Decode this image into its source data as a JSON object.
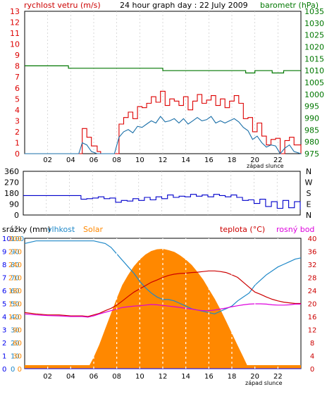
{
  "colors": {
    "wind": "#dd0000",
    "gust": "#1a6fa8",
    "baro": "#007700",
    "dir": "#0000cc",
    "rain": "#0000ee",
    "humidity": "#1e88c8",
    "solar": "#ff8800",
    "temp": "#cc0000",
    "dew": "#dd00dd",
    "frame": "#000000",
    "grid": "#ffffff",
    "panel_bg": "#ffffff"
  },
  "chart_data": [
    {
      "type": "line",
      "title": "24 hour graph day : 22 July 2009",
      "ylabel_left": "rychlost vetru (m/s)",
      "ylabel_right": "barometr (hPa)",
      "x_ticks": [
        "02",
        "04",
        "06",
        "08",
        "10",
        "12",
        "14",
        "16",
        "18",
        "20",
        "22"
      ],
      "x_note": "západ slunce",
      "ylim_left": [
        0,
        13
      ],
      "y_ticks_left": [
        "0",
        "1",
        "2",
        "3",
        "4",
        "5",
        "6",
        "7",
        "8",
        "9",
        "10",
        "11",
        "12",
        "13"
      ],
      "ylim_right": [
        975,
        1035
      ],
      "y_ticks_right": [
        "975",
        "980",
        "985",
        "990",
        "995",
        "1000",
        "1005",
        "1010",
        "1015",
        "1020",
        "1025",
        "1030",
        "1035"
      ],
      "grid": "white dashed vertical lines",
      "series": [
        {
          "name": "wind-gust",
          "style": "step",
          "x": [
            0,
            4.7,
            5.0,
            5.4,
            5.8,
            6.3,
            6.6,
            7.0,
            7.4,
            7.8,
            8.2,
            8.6,
            9.0,
            9.4,
            9.8,
            10.2,
            10.6,
            11.0,
            11.4,
            11.8,
            12.2,
            12.6,
            13.0,
            13.4,
            13.8,
            14.2,
            14.6,
            15.0,
            15.4,
            15.8,
            16.2,
            16.6,
            17.0,
            17.4,
            17.8,
            18.2,
            18.6,
            19.0,
            19.4,
            19.8,
            20.2,
            20.6,
            21.0,
            21.4,
            21.8,
            22.2,
            22.6,
            23.0,
            23.4,
            24
          ],
          "y": [
            0,
            0,
            2.3,
            1.5,
            0.7,
            0.2,
            0.0,
            0.0,
            0.0,
            0.0,
            2.7,
            3.3,
            3.8,
            3.2,
            4.3,
            4.2,
            4.6,
            5.2,
            4.7,
            5.7,
            4.4,
            5.0,
            4.8,
            4.4,
            5.2,
            4.0,
            4.8,
            5.4,
            4.6,
            4.9,
            5.3,
            4.4,
            5.0,
            4.2,
            4.8,
            5.3,
            4.6,
            3.2,
            3.3,
            2.0,
            2.8,
            1.6,
            0.8,
            1.3,
            1.4,
            0.0,
            1.2,
            1.5,
            0.8,
            0
          ]
        },
        {
          "name": "wind-speed",
          "style": "line",
          "x": [
            0,
            4.7,
            5.0,
            5.4,
            5.8,
            6.3,
            6.6,
            7.0,
            7.4,
            7.8,
            8.2,
            8.6,
            9.0,
            9.4,
            9.8,
            10.2,
            10.6,
            11.0,
            11.4,
            11.8,
            12.2,
            12.6,
            13.0,
            13.4,
            13.8,
            14.2,
            14.6,
            15.0,
            15.4,
            15.8,
            16.2,
            16.6,
            17.0,
            17.4,
            17.8,
            18.2,
            18.6,
            19.0,
            19.4,
            19.8,
            20.2,
            20.6,
            21.0,
            21.4,
            21.8,
            22.2,
            22.6,
            23.0,
            23.4,
            24
          ],
          "y": [
            0,
            0,
            1.0,
            0.8,
            0.2,
            0.0,
            0.0,
            0.0,
            0.0,
            0.0,
            1.5,
            2.0,
            2.2,
            1.9,
            2.5,
            2.4,
            2.7,
            3.0,
            2.8,
            3.4,
            2.9,
            3.0,
            3.2,
            2.8,
            3.2,
            2.7,
            3.0,
            3.3,
            3.0,
            3.1,
            3.4,
            2.8,
            3.0,
            2.8,
            3.0,
            3.2,
            2.9,
            2.4,
            2.1,
            1.3,
            1.6,
            1.0,
            0.6,
            0.8,
            0.7,
            0.0,
            0.5,
            0.8,
            0.2,
            0
          ]
        },
        {
          "name": "barometer",
          "style": "step",
          "axis": "right",
          "x": [
            0,
            3.8,
            8.0,
            12.0,
            15.3,
            16.0,
            17.5,
            19.2,
            20.0,
            21.5,
            22.5,
            24
          ],
          "y": [
            1012,
            1011,
            1011,
            1010,
            1010,
            1010,
            1010,
            1009,
            1010,
            1009,
            1010,
            1010
          ]
        }
      ]
    },
    {
      "type": "scatter",
      "ylabel_right": [
        "N",
        "W",
        "S",
        "E",
        "N"
      ],
      "ylim": [
        0,
        360
      ],
      "y_ticks": [
        "0",
        "90",
        "180",
        "270",
        "360"
      ],
      "series": [
        {
          "name": "wind-direction",
          "style": "step",
          "x": [
            0,
            4.6,
            5.0,
            5.5,
            6.0,
            6.5,
            7.0,
            7.5,
            8.0,
            8.5,
            9.0,
            9.5,
            10.0,
            10.5,
            11.0,
            11.5,
            12.0,
            12.5,
            13.0,
            13.5,
            14.0,
            14.5,
            15.0,
            15.5,
            16.0,
            16.5,
            17.0,
            17.5,
            18.0,
            18.5,
            19.0,
            19.5,
            20.0,
            20.5,
            21.0,
            21.5,
            22.0,
            22.5,
            23.0,
            23.5,
            24
          ],
          "y": [
            160,
            160,
            130,
            135,
            140,
            150,
            135,
            140,
            105,
            120,
            115,
            135,
            120,
            145,
            125,
            150,
            135,
            165,
            145,
            155,
            150,
            170,
            155,
            165,
            150,
            170,
            160,
            150,
            165,
            145,
            120,
            125,
            95,
            130,
            70,
            110,
            55,
            120,
            60,
            110,
            45
          ]
        }
      ]
    },
    {
      "type": "area",
      "ylabel_left_1": "srážky (mm)",
      "ylabel_left_2": "vlhkost",
      "ylabel_left_3": "Solar",
      "ylabel_right_1": "teplota (°C)",
      "ylabel_right_2": "rosný bod",
      "x_ticks": [
        "02",
        "04",
        "06",
        "08",
        "10",
        "12",
        "14",
        "16",
        "18",
        "20",
        "22"
      ],
      "x_note": "západ slunce",
      "y_ticks_rain": [
        "0",
        "1",
        "2",
        "3",
        "4",
        "5",
        "6",
        "7",
        "8",
        "9",
        "10"
      ],
      "y_ticks_humidity": [
        "0",
        "10",
        "20",
        "30",
        "40",
        "50",
        "60",
        "70",
        "80",
        "90",
        "100"
      ],
      "y_ticks_solar": [
        "0",
        "30",
        "60",
        "90",
        "120",
        "150",
        "180",
        "210",
        "240",
        "270",
        "300"
      ],
      "y_ticks_right": [
        "0",
        "4",
        "8",
        "12",
        "16",
        "20",
        "24",
        "28",
        "32",
        "36",
        "40"
      ],
      "series": [
        {
          "name": "solar",
          "style": "area",
          "x": [
            0,
            5.3,
            5.6,
            6.0,
            6.5,
            7.0,
            7.5,
            8.0,
            8.5,
            9.0,
            9.5,
            10.0,
            10.5,
            11.0,
            11.5,
            12.0,
            12.5,
            13.0,
            13.5,
            14.0,
            14.5,
            15.0,
            15.5,
            16.0,
            16.5,
            17.0,
            17.5,
            18.0,
            18.5,
            19.0,
            19.3,
            19.6,
            24
          ],
          "y": [
            0,
            0,
            5,
            25,
            55,
            90,
            125,
            160,
            192,
            215,
            235,
            250,
            262,
            270,
            274,
            275,
            272,
            268,
            260,
            250,
            238,
            222,
            204,
            182,
            160,
            135,
            108,
            80,
            52,
            25,
            8,
            0,
            0
          ]
        },
        {
          "name": "humidity",
          "style": "line",
          "x": [
            0,
            1.0,
            2.0,
            3.0,
            4.0,
            5.0,
            6.0,
            7.0,
            7.5,
            8.0,
            8.5,
            9.0,
            9.5,
            10.0,
            10.5,
            11.0,
            11.5,
            12.0,
            12.5,
            13.0,
            13.5,
            14.0,
            14.5,
            15.0,
            15.5,
            16.0,
            16.5,
            17.0,
            17.5,
            18.0,
            18.5,
            19.0,
            19.5,
            20.0,
            20.5,
            21.0,
            21.5,
            22.0,
            22.5,
            23.0,
            23.5,
            24
          ],
          "y": [
            96,
            98,
            98,
            98,
            98,
            98,
            98,
            96,
            93,
            88,
            83,
            78,
            73,
            67,
            62,
            58,
            55,
            53,
            53,
            52,
            50,
            48,
            46,
            45,
            44,
            43,
            42,
            44,
            46,
            48,
            52,
            55,
            58,
            64,
            68,
            72,
            75,
            78,
            80,
            82,
            84,
            85
          ]
        },
        {
          "name": "temperature",
          "style": "line",
          "axis": "right",
          "x": [
            0,
            1.0,
            2.0,
            3.0,
            4.0,
            5.0,
            5.5,
            6.0,
            6.5,
            7.0,
            7.5,
            8.0,
            8.5,
            9.0,
            9.5,
            10.0,
            10.5,
            11.0,
            11.5,
            12.0,
            12.5,
            13.0,
            13.5,
            14.0,
            14.5,
            15.0,
            15.5,
            16.0,
            16.5,
            17.0,
            17.5,
            18.0,
            18.5,
            19.0,
            19.5,
            20.0,
            20.5,
            21.0,
            21.5,
            22.0,
            22.5,
            23.0,
            23.5,
            24
          ],
          "y": [
            17.2,
            16.8,
            16.5,
            16.5,
            16.2,
            16.2,
            16.0,
            16.5,
            17.0,
            17.8,
            18.5,
            19.5,
            20.8,
            22.2,
            23.5,
            24.5,
            25.5,
            26.5,
            27.2,
            28.0,
            28.6,
            29.0,
            29.2,
            29.3,
            29.5,
            29.6,
            29.8,
            30.0,
            30.0,
            29.8,
            29.5,
            28.8,
            28.0,
            26.5,
            25.0,
            23.5,
            22.8,
            22.0,
            21.3,
            20.8,
            20.4,
            20.2,
            20.0,
            20.0
          ]
        },
        {
          "name": "dew-point",
          "style": "line",
          "axis": "right",
          "x": [
            0,
            1.0,
            2.0,
            3.0,
            4.0,
            5.0,
            5.5,
            6.0,
            6.5,
            7.0,
            7.5,
            8.0,
            8.5,
            9.0,
            9.5,
            10.0,
            10.5,
            11.0,
            11.5,
            12.0,
            12.5,
            13.0,
            13.5,
            14.0,
            14.5,
            15.0,
            15.5,
            16.0,
            16.5,
            17.0,
            17.5,
            18.0,
            18.5,
            19.0,
            19.5,
            20.0,
            20.5,
            21.0,
            21.5,
            22.0,
            22.5,
            23.0,
            23.5,
            24
          ],
          "y": [
            16.8,
            16.5,
            16.3,
            16.2,
            16.0,
            16.0,
            15.8,
            16.2,
            16.8,
            17.3,
            17.8,
            18.3,
            18.8,
            19.0,
            19.2,
            19.3,
            19.5,
            19.7,
            19.6,
            19.4,
            19.2,
            19.0,
            18.8,
            18.5,
            18.3,
            18.0,
            17.8,
            17.8,
            18.0,
            18.3,
            18.6,
            19.0,
            19.3,
            19.6,
            19.8,
            19.9,
            19.9,
            19.8,
            19.6,
            19.5,
            19.5,
            19.6,
            19.8,
            19.8
          ]
        },
        {
          "name": "rain",
          "style": "step",
          "x": [
            0,
            24
          ],
          "y": [
            0,
            0
          ]
        }
      ]
    }
  ]
}
